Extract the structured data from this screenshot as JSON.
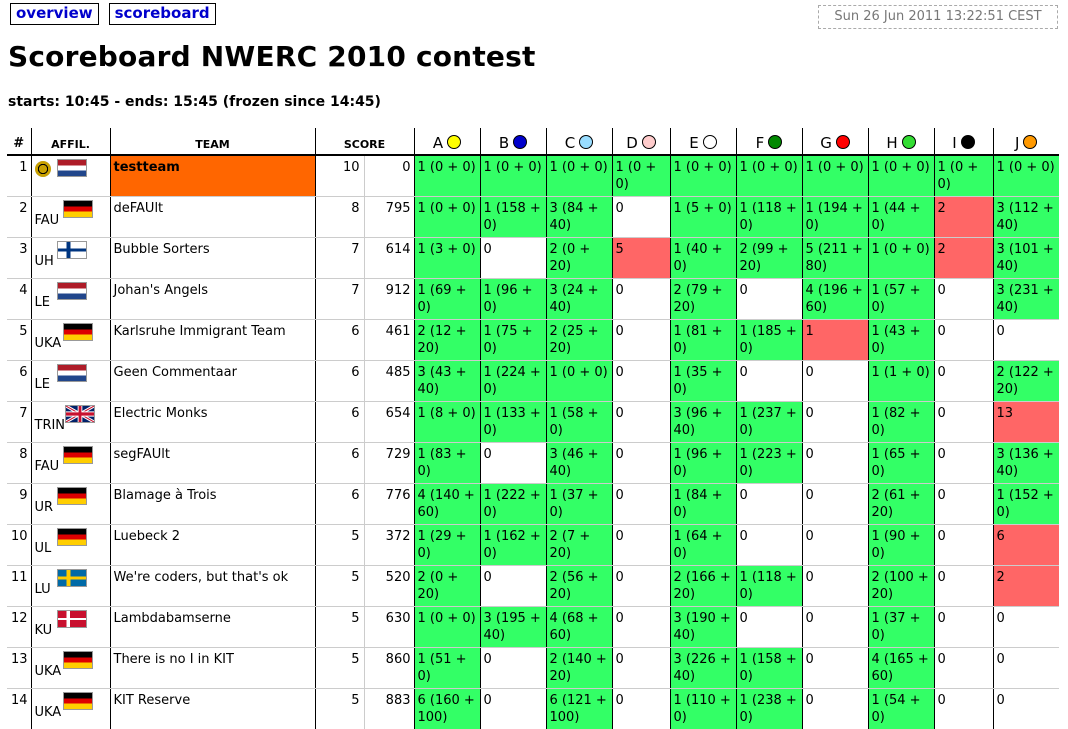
{
  "nav": {
    "overview": "overview",
    "scoreboard": "scoreboard"
  },
  "clock": "Sun 26 Jun 2011 13:22:51 CEST",
  "title": "Scoreboard NWERC 2010 contest",
  "times": "starts: 10:45 - ends: 15:45 (frozen since 14:45)",
  "headers": {
    "rank": "#",
    "affil": "AFFIL.",
    "team": "TEAM",
    "score": "SCORE"
  },
  "problems": [
    {
      "label": "A",
      "color": "#ffff00"
    },
    {
      "label": "B",
      "color": "#0000cc"
    },
    {
      "label": "C",
      "color": "#99ddff"
    },
    {
      "label": "D",
      "color": "#ffcccc"
    },
    {
      "label": "E",
      "color": "#ffffff"
    },
    {
      "label": "F",
      "color": "#008800"
    },
    {
      "label": "G",
      "color": "#ff0000"
    },
    {
      "label": "H",
      "color": "#33dd33"
    },
    {
      "label": "I",
      "color": "#000000"
    },
    {
      "label": "J",
      "color": "#ff9900"
    }
  ],
  "rows": [
    {
      "rank": "1",
      "affil": "",
      "flag": "nl",
      "logo": true,
      "team": "testteam",
      "highlight": true,
      "solved": "10",
      "time": "0",
      "cells": [
        [
          "1 (0 + 0)",
          "c"
        ],
        [
          "1 (0 + 0)",
          "c"
        ],
        [
          "1 (0 + 0)",
          "c"
        ],
        [
          "1 (0 + 0)",
          "c"
        ],
        [
          "1 (0 + 0)",
          "c"
        ],
        [
          "1 (0 + 0)",
          "c"
        ],
        [
          "1 (0 + 0)",
          "c"
        ],
        [
          "1 (0 + 0)",
          "c"
        ],
        [
          "1 (0 + 0)",
          "c"
        ],
        [
          "1 (0 + 0)",
          "c"
        ]
      ]
    },
    {
      "rank": "2",
      "affil": "FAU",
      "flag": "de",
      "team": "deFAUlt",
      "solved": "8",
      "time": "795",
      "cells": [
        [
          "1 (0 + 0)",
          "c"
        ],
        [
          "1 (158 + 0)",
          "c"
        ],
        [
          "3 (84 + 40)",
          "c"
        ],
        [
          "0",
          "n"
        ],
        [
          "1 (5 + 0)",
          "c"
        ],
        [
          "1 (118 + 0)",
          "c"
        ],
        [
          "1 (194 + 0)",
          "c"
        ],
        [
          "1 (44 + 0)",
          "c"
        ],
        [
          "2",
          "i"
        ],
        [
          "3 (112 + 40)",
          "c"
        ]
      ]
    },
    {
      "rank": "3",
      "affil": "UH",
      "flag": "fi",
      "team": "Bubble Sorters",
      "solved": "7",
      "time": "614",
      "cells": [
        [
          "1 (3 + 0)",
          "c"
        ],
        [
          "0",
          "n"
        ],
        [
          "2 (0 + 20)",
          "c"
        ],
        [
          "5",
          "i"
        ],
        [
          "1 (40 + 0)",
          "c"
        ],
        [
          "2 (99 + 20)",
          "c"
        ],
        [
          "5 (211 + 80)",
          "c"
        ],
        [
          "1 (0 + 0)",
          "c"
        ],
        [
          "2",
          "i"
        ],
        [
          "3 (101 + 40)",
          "c"
        ]
      ]
    },
    {
      "rank": "4",
      "affil": "LE",
      "flag": "nl",
      "team": "Johan's Angels",
      "solved": "7",
      "time": "912",
      "cells": [
        [
          "1 (69 + 0)",
          "c"
        ],
        [
          "1 (96 + 0)",
          "c"
        ],
        [
          "3 (24 + 40)",
          "c"
        ],
        [
          "0",
          "n"
        ],
        [
          "2 (79 + 20)",
          "c"
        ],
        [
          "0",
          "n"
        ],
        [
          "4 (196 + 60)",
          "c"
        ],
        [
          "1 (57 + 0)",
          "c"
        ],
        [
          "0",
          "n"
        ],
        [
          "3 (231 + 40)",
          "c"
        ]
      ]
    },
    {
      "rank": "5",
      "affil": "UKA",
      "flag": "de",
      "team": "Karlsruhe Immigrant Team",
      "solved": "6",
      "time": "461",
      "cells": [
        [
          "2 (12 + 20)",
          "c"
        ],
        [
          "1 (75 + 0)",
          "c"
        ],
        [
          "2 (25 + 20)",
          "c"
        ],
        [
          "0",
          "n"
        ],
        [
          "1 (81 + 0)",
          "c"
        ],
        [
          "1 (185 + 0)",
          "c"
        ],
        [
          "1",
          "i"
        ],
        [
          "1 (43 + 0)",
          "c"
        ],
        [
          "0",
          "n"
        ],
        [
          "0",
          "n"
        ]
      ]
    },
    {
      "rank": "6",
      "affil": "LE",
      "flag": "nl",
      "team": "Geen Commentaar",
      "solved": "6",
      "time": "485",
      "cells": [
        [
          "3 (43 + 40)",
          "c"
        ],
        [
          "1 (224 + 0)",
          "c"
        ],
        [
          "1 (0 + 0)",
          "c"
        ],
        [
          "0",
          "n"
        ],
        [
          "1 (35 + 0)",
          "c"
        ],
        [
          "0",
          "n"
        ],
        [
          "0",
          "n"
        ],
        [
          "1 (1 + 0)",
          "c"
        ],
        [
          "0",
          "n"
        ],
        [
          "2 (122 + 20)",
          "c"
        ]
      ]
    },
    {
      "rank": "7",
      "affil": "TRIN",
      "flag": "uk",
      "team": "Electric Monks",
      "solved": "6",
      "time": "654",
      "cells": [
        [
          "1 (8 + 0)",
          "c"
        ],
        [
          "1 (133 + 0)",
          "c"
        ],
        [
          "1 (58 + 0)",
          "c"
        ],
        [
          "0",
          "n"
        ],
        [
          "3 (96 + 40)",
          "c"
        ],
        [
          "1 (237 + 0)",
          "c"
        ],
        [
          "0",
          "n"
        ],
        [
          "1 (82 + 0)",
          "c"
        ],
        [
          "0",
          "n"
        ],
        [
          "13",
          "i"
        ]
      ]
    },
    {
      "rank": "8",
      "affil": "FAU",
      "flag": "de",
      "team": "segFAUlt",
      "solved": "6",
      "time": "729",
      "cells": [
        [
          "1 (83 + 0)",
          "c"
        ],
        [
          "0",
          "n"
        ],
        [
          "3 (46 + 40)",
          "c"
        ],
        [
          "0",
          "n"
        ],
        [
          "1 (96 + 0)",
          "c"
        ],
        [
          "1 (223 + 0)",
          "c"
        ],
        [
          "0",
          "n"
        ],
        [
          "1 (65 + 0)",
          "c"
        ],
        [
          "0",
          "n"
        ],
        [
          "3 (136 + 40)",
          "c"
        ]
      ]
    },
    {
      "rank": "9",
      "affil": "UR",
      "flag": "de",
      "team": "Blamage à Trois",
      "solved": "6",
      "time": "776",
      "cells": [
        [
          "4 (140 + 60)",
          "c"
        ],
        [
          "1 (222 + 0)",
          "c"
        ],
        [
          "1 (37 + 0)",
          "c"
        ],
        [
          "0",
          "n"
        ],
        [
          "1 (84 + 0)",
          "c"
        ],
        [
          "0",
          "n"
        ],
        [
          "0",
          "n"
        ],
        [
          "2 (61 + 20)",
          "c"
        ],
        [
          "0",
          "n"
        ],
        [
          "1 (152 + 0)",
          "c"
        ]
      ]
    },
    {
      "rank": "10",
      "affil": "UL",
      "flag": "de",
      "team": "Luebeck 2",
      "solved": "5",
      "time": "372",
      "cells": [
        [
          "1 (29 + 0)",
          "c"
        ],
        [
          "1 (162 + 0)",
          "c"
        ],
        [
          "2 (7 + 20)",
          "c"
        ],
        [
          "0",
          "n"
        ],
        [
          "1 (64 + 0)",
          "c"
        ],
        [
          "0",
          "n"
        ],
        [
          "0",
          "n"
        ],
        [
          "1 (90 + 0)",
          "c"
        ],
        [
          "0",
          "n"
        ],
        [
          "6",
          "i"
        ]
      ]
    },
    {
      "rank": "11",
      "affil": "LU",
      "flag": "se",
      "team": "We're coders, but that's ok",
      "solved": "5",
      "time": "520",
      "cells": [
        [
          "2 (0 + 20)",
          "c"
        ],
        [
          "0",
          "n"
        ],
        [
          "2 (56 + 20)",
          "c"
        ],
        [
          "0",
          "n"
        ],
        [
          "2 (166 + 20)",
          "c"
        ],
        [
          "1 (118 + 0)",
          "c"
        ],
        [
          "0",
          "n"
        ],
        [
          "2 (100 + 20)",
          "c"
        ],
        [
          "0",
          "n"
        ],
        [
          "2",
          "i"
        ]
      ]
    },
    {
      "rank": "12",
      "affil": "KU",
      "flag": "dk",
      "team": "Lambdabamserne",
      "solved": "5",
      "time": "630",
      "cells": [
        [
          "1 (0 + 0)",
          "c"
        ],
        [
          "3 (195 + 40)",
          "c"
        ],
        [
          "4 (68 + 60)",
          "c"
        ],
        [
          "0",
          "n"
        ],
        [
          "3 (190 + 40)",
          "c"
        ],
        [
          "0",
          "n"
        ],
        [
          "0",
          "n"
        ],
        [
          "1 (37 + 0)",
          "c"
        ],
        [
          "0",
          "n"
        ],
        [
          "0",
          "n"
        ]
      ]
    },
    {
      "rank": "13",
      "affil": "UKA",
      "flag": "de",
      "team": "There is no I in KIT",
      "solved": "5",
      "time": "860",
      "cells": [
        [
          "1 (51 + 0)",
          "c"
        ],
        [
          "0",
          "n"
        ],
        [
          "2 (140 + 20)",
          "c"
        ],
        [
          "0",
          "n"
        ],
        [
          "3 (226 + 40)",
          "c"
        ],
        [
          "1 (158 + 0)",
          "c"
        ],
        [
          "0",
          "n"
        ],
        [
          "4 (165 + 60)",
          "c"
        ],
        [
          "0",
          "n"
        ],
        [
          "0",
          "n"
        ]
      ]
    },
    {
      "rank": "14",
      "affil": "UKA",
      "flag": "de",
      "team": "KIT Reserve",
      "solved": "5",
      "time": "883",
      "cells": [
        [
          "6 (160 + 100)",
          "c"
        ],
        [
          "0",
          "n"
        ],
        [
          "6 (121 + 100)",
          "c"
        ],
        [
          "0",
          "n"
        ],
        [
          "1 (110 + 0)",
          "c"
        ],
        [
          "1 (238 + 0)",
          "c"
        ],
        [
          "0",
          "n"
        ],
        [
          "1 (54 + 0)",
          "c"
        ],
        [
          "0",
          "n"
        ],
        [
          "0",
          "n"
        ]
      ]
    }
  ]
}
